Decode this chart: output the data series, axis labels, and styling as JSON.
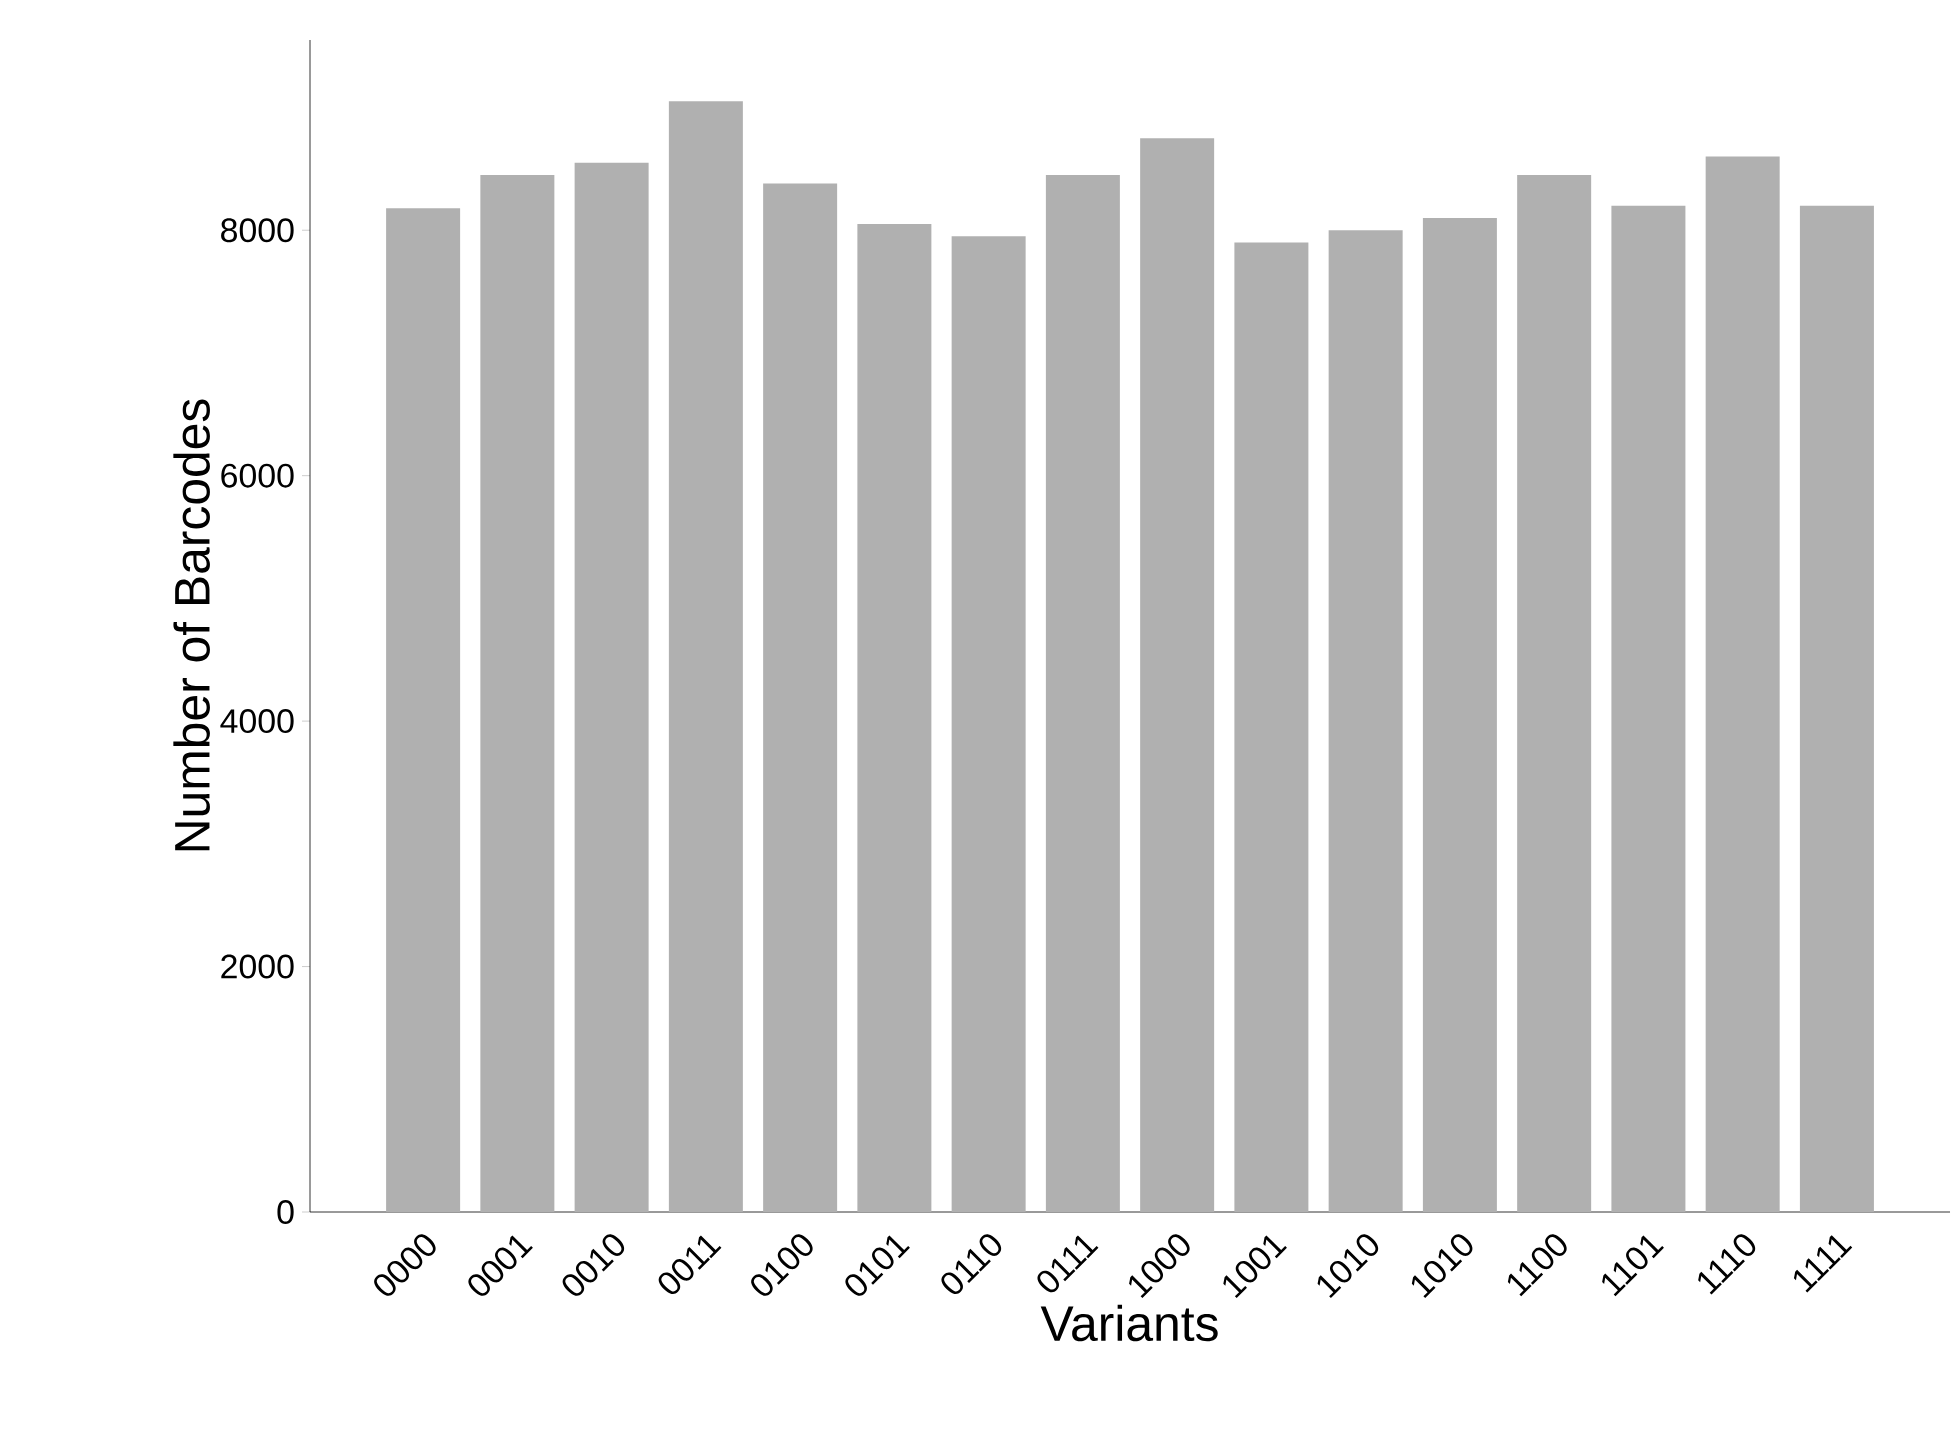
{
  "chart_data": {
    "type": "bar",
    "xlabel": "Variants",
    "ylabel": "Number of Barcodes",
    "categories": [
      "0000",
      "0001",
      "0010",
      "0011",
      "0100",
      "0101",
      "0110",
      "0111",
      "1000",
      "1001",
      "1010",
      "1010",
      "1100",
      "1101",
      "1110",
      "1111"
    ],
    "values": [
      8180,
      8450,
      8550,
      9050,
      8380,
      8050,
      7950,
      8450,
      8750,
      7900,
      8000,
      8100,
      8450,
      8200,
      8600,
      8200
    ],
    "color": "#b0b0b0",
    "ylim": [
      0,
      9550
    ],
    "yticks": [
      0,
      2000,
      4000,
      6000,
      8000
    ]
  }
}
